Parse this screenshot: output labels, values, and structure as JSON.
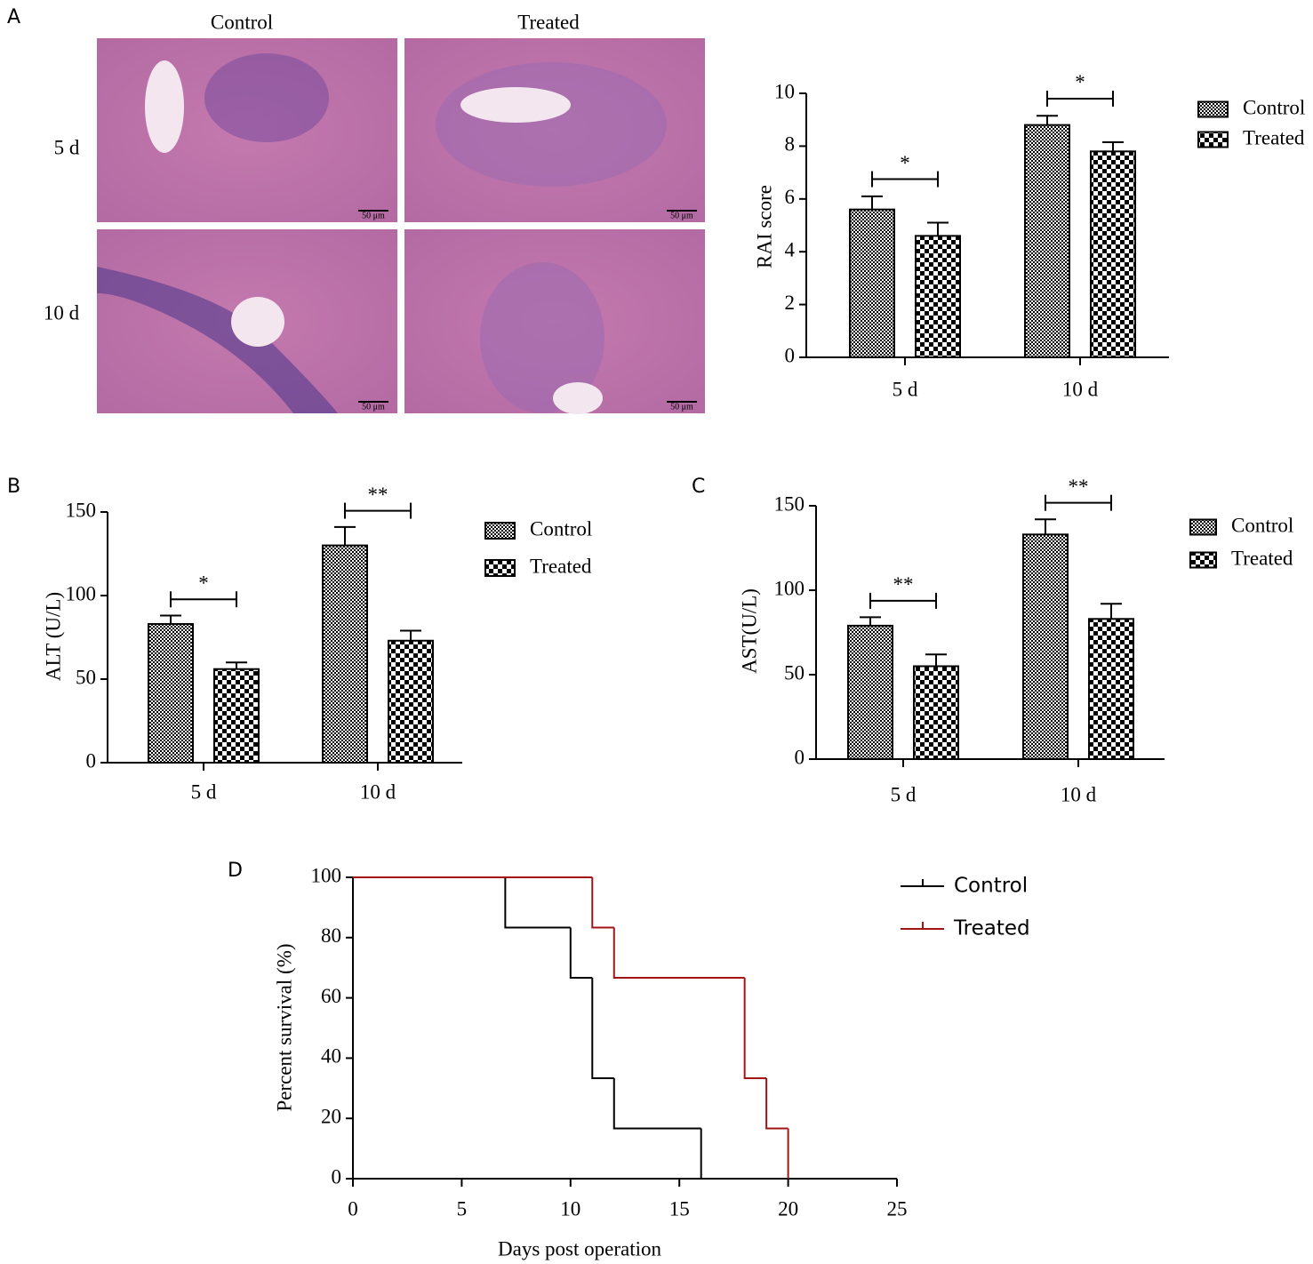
{
  "panel_labels": [
    "A",
    "B",
    "C",
    "D"
  ],
  "micrographs": {
    "columns": [
      "Control",
      "Treated"
    ],
    "rows": [
      "5 d",
      "10 d"
    ],
    "scale_bar": "50 μm"
  },
  "chart_data": [
    {
      "type": "bar",
      "y_label": "RAI score",
      "categories": [
        "5 d",
        "10 d"
      ],
      "series": [
        {
          "name": "Control",
          "color": "#000000",
          "pattern": "fine-check",
          "values": [
            5.6,
            8.8
          ],
          "errors": [
            0.5,
            0.35
          ]
        },
        {
          "name": "Treated",
          "color": "#000000",
          "pattern": "coarse-check",
          "values": [
            4.6,
            7.8
          ],
          "errors": [
            0.5,
            0.35
          ]
        }
      ],
      "significance": [
        "*",
        "*"
      ],
      "ylim": [
        0,
        10
      ],
      "yticks": [
        0,
        2,
        4,
        6,
        8,
        10
      ],
      "grid": false,
      "legend": "right"
    },
    {
      "type": "bar",
      "y_label": "ALT (U/L)",
      "categories": [
        "5 d",
        "10 d"
      ],
      "series": [
        {
          "name": "Control",
          "color": "#000000",
          "pattern": "fine-check",
          "values": [
            83,
            130
          ],
          "errors": [
            5,
            11
          ]
        },
        {
          "name": "Treated",
          "color": "#000000",
          "pattern": "coarse-check",
          "values": [
            56,
            73
          ],
          "errors": [
            4,
            6
          ]
        }
      ],
      "significance": [
        "*",
        "**"
      ],
      "ylim": [
        0,
        150
      ],
      "yticks": [
        0,
        50,
        100,
        150
      ],
      "grid": false,
      "legend": "right"
    },
    {
      "type": "bar",
      "y_label": "AST(U/L)",
      "categories": [
        "5 d",
        "10 d"
      ],
      "series": [
        {
          "name": "Control",
          "color": "#000000",
          "pattern": "fine-check",
          "values": [
            79,
            133
          ],
          "errors": [
            5,
            9
          ]
        },
        {
          "name": "Treated",
          "color": "#000000",
          "pattern": "coarse-check",
          "values": [
            55,
            83
          ],
          "errors": [
            7,
            9
          ]
        }
      ],
      "significance": [
        "**",
        "**"
      ],
      "ylim": [
        0,
        150
      ],
      "yticks": [
        0,
        50,
        100,
        150
      ],
      "grid": false,
      "legend": "right"
    },
    {
      "type": "step",
      "x_label": "Days post operation",
      "y_label": "Percent survival (%)",
      "series": [
        {
          "name": "Control",
          "color": "#000000",
          "x": [
            0,
            7,
            10,
            11,
            12,
            16
          ],
          "values": [
            100,
            83.33,
            66.67,
            33.33,
            16.67,
            0
          ]
        },
        {
          "name": "Treated",
          "color": "#a31515",
          "x": [
            0,
            11,
            12,
            18,
            19,
            20
          ],
          "values": [
            100,
            83.33,
            66.67,
            33.33,
            16.67,
            0
          ]
        }
      ],
      "xlim": [
        0,
        25
      ],
      "xticks": [
        0,
        5,
        10,
        15,
        20,
        25
      ],
      "ylim": [
        0,
        100
      ],
      "yticks": [
        0,
        20,
        40,
        60,
        80,
        100
      ],
      "grid": false,
      "legend": "right"
    }
  ]
}
